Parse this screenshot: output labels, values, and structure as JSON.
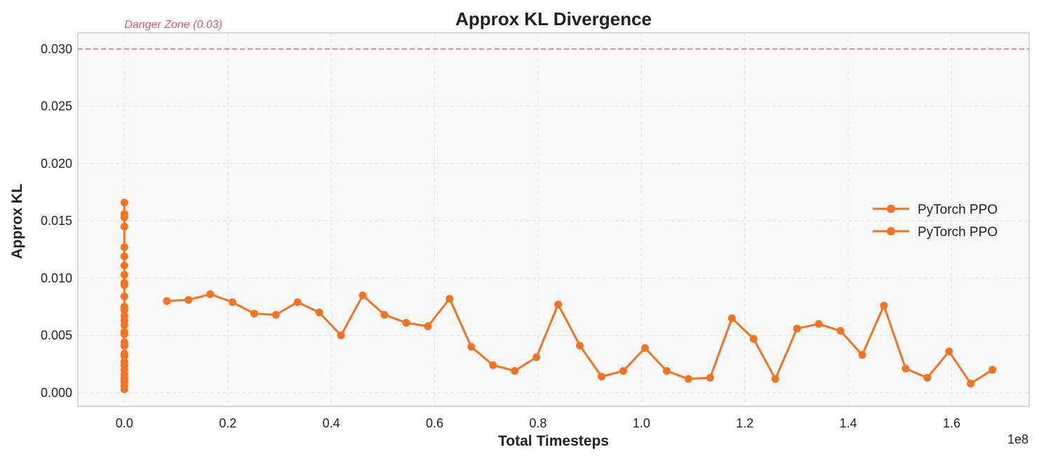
{
  "colors": {
    "series": "#f27321",
    "danger": "#e8525e",
    "plot_bg": "#f8f8f8",
    "grid": "#e2e2e2",
    "spine": "#cccccc",
    "text": "#222222"
  },
  "chart_data": {
    "type": "line",
    "title": "Approx KL Divergence",
    "xlabel": "Total Timesteps",
    "ylabel": "Approx KL",
    "x_offset_label": "1e8",
    "xlim": [
      -0.09,
      1.75
    ],
    "ylim": [
      -0.0012,
      0.0314
    ],
    "x_ticks": [
      0.0,
      0.2,
      0.4,
      0.6,
      0.8,
      1.0,
      1.2,
      1.4,
      1.6
    ],
    "x_tick_labels": [
      "0.0",
      "0.2",
      "0.4",
      "0.6",
      "0.8",
      "1.0",
      "1.2",
      "1.4",
      "1.6"
    ],
    "y_ticks": [
      0.0,
      0.005,
      0.01,
      0.015,
      0.02,
      0.025,
      0.03
    ],
    "y_tick_labels": [
      "0.000",
      "0.005",
      "0.010",
      "0.015",
      "0.020",
      "0.025",
      "0.030"
    ],
    "grid": true,
    "legend_position": "center-right",
    "annotations": [
      {
        "text": "Danger Zone (0.03)",
        "type": "hline",
        "y": 0.03
      }
    ],
    "series": [
      {
        "name": "PyTorch PPO",
        "color": "#f27321",
        "x": [
          0,
          0,
          0,
          0,
          0,
          0,
          0,
          0,
          0,
          0,
          0,
          0,
          0,
          0,
          0,
          0,
          0,
          0,
          0,
          0,
          0,
          0,
          0,
          0,
          0,
          0,
          0,
          0,
          0,
          0,
          0
        ],
        "y": [
          0.0166,
          0.0156,
          0.0153,
          0.0145,
          0.0127,
          0.0119,
          0.0111,
          0.0103,
          0.0096,
          0.0094,
          0.0084,
          0.0075,
          0.0072,
          0.0067,
          0.0063,
          0.0059,
          0.0053,
          0.0051,
          0.0044,
          0.0041,
          0.0034,
          0.0032,
          0.0027,
          0.0024,
          0.002,
          0.0016,
          0.0013,
          0.0011,
          0.0009,
          0.0006,
          0.0003
        ]
      },
      {
        "name": "PyTorch PPO",
        "color": "#f27321",
        "x": [
          0.082,
          0.124,
          0.166,
          0.209,
          0.251,
          0.293,
          0.335,
          0.377,
          0.419,
          0.461,
          0.503,
          0.545,
          0.587,
          0.629,
          0.671,
          0.713,
          0.755,
          0.797,
          0.839,
          0.881,
          0.923,
          0.965,
          1.007,
          1.049,
          1.091,
          1.133,
          1.175,
          1.217,
          1.259,
          1.301,
          1.343,
          1.385,
          1.427,
          1.469,
          1.511,
          1.553,
          1.595,
          1.637,
          1.679
        ],
        "y": [
          0.008,
          0.0081,
          0.0086,
          0.0079,
          0.0069,
          0.0068,
          0.0079,
          0.007,
          0.005,
          0.0085,
          0.0068,
          0.0061,
          0.0058,
          0.0082,
          0.004,
          0.0024,
          0.0019,
          0.0031,
          0.0077,
          0.0041,
          0.0014,
          0.0019,
          0.0039,
          0.0019,
          0.0012,
          0.0013,
          0.0065,
          0.0047,
          0.0012,
          0.0056,
          0.006,
          0.0054,
          0.0033,
          0.0076,
          0.0021,
          0.0013,
          0.0036,
          0.0008,
          0.002
        ]
      }
    ]
  }
}
